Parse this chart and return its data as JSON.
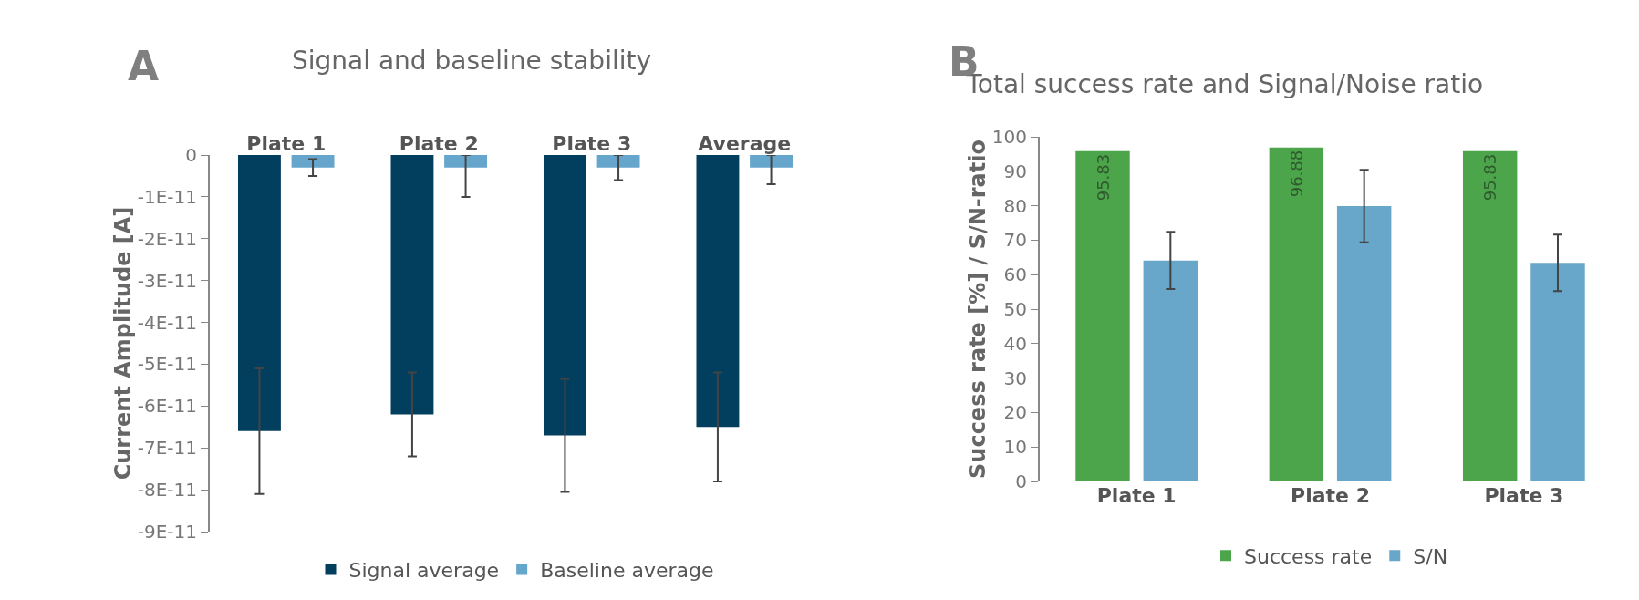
{
  "chart_data": [
    {
      "type": "bar",
      "title": "Signal and baseline stability",
      "ylabel": "Current Amplitude [A]",
      "annotations": [
        "A"
      ],
      "categories": [
        "Plate 1",
        "Plate 2",
        "Plate 3",
        "Average"
      ],
      "series": [
        {
          "name": "Signal average",
          "color": "#023f5f",
          "values": [
            -6.6e-11,
            -6.2e-11,
            -6.7e-11,
            -6.5e-11
          ],
          "errors": [
            1.5e-11,
            1e-11,
            1.35e-11,
            1.3e-11
          ]
        },
        {
          "name": "Baseline average",
          "color": "#66a6cc",
          "values": [
            -3e-12,
            -3e-12,
            -3e-12,
            -3e-12
          ],
          "errors": [
            2e-12,
            [
              -1e-11,
              0
            ],
            3e-12,
            [
              -7e-12,
              0
            ]
          ]
        }
      ],
      "ylim": [
        -9e-11,
        0
      ],
      "yticks": [
        0,
        {
          "value": -1e-11,
          "label": "-1E-11"
        },
        {
          "value": -2e-11,
          "label": "-2E-11"
        },
        {
          "value": -3e-11,
          "label": "-3E-11"
        },
        {
          "value": -4e-11,
          "label": "-4E-11"
        },
        {
          "value": -5e-11,
          "label": "-5E-11"
        },
        {
          "value": -6e-11,
          "label": "-6E-11"
        },
        {
          "value": -7e-11,
          "label": "-7E-11"
        },
        {
          "value": -8e-11,
          "label": "-8E-11"
        },
        {
          "value": -9e-11,
          "label": "-9E-11"
        }
      ],
      "grid": false,
      "legend": "bottom"
    },
    {
      "type": "bar",
      "title": "Total success rate and Signal/Noise ratio",
      "ylabel": "Success rate [%] / S/N-ratio",
      "annotations": [
        "B"
      ],
      "categories": [
        "Plate 1",
        "Plate 2",
        "Plate 3"
      ],
      "series": [
        {
          "name": "Success rate",
          "color": "#4ca54a",
          "values": [
            95.83,
            96.88,
            95.83
          ],
          "value_labels": [
            "95.83",
            "96.88",
            "95.83"
          ]
        },
        {
          "name": "S/N",
          "color": "#68a6ca",
          "values": [
            64.1,
            79.9,
            63.4
          ],
          "errors": [
            8.3,
            10.5,
            8.2
          ]
        }
      ],
      "ylim": [
        0,
        100
      ],
      "yticks": [
        0,
        10,
        20,
        30,
        40,
        50,
        60,
        70,
        80,
        90,
        100
      ],
      "grid": false,
      "legend": "bottom"
    }
  ]
}
